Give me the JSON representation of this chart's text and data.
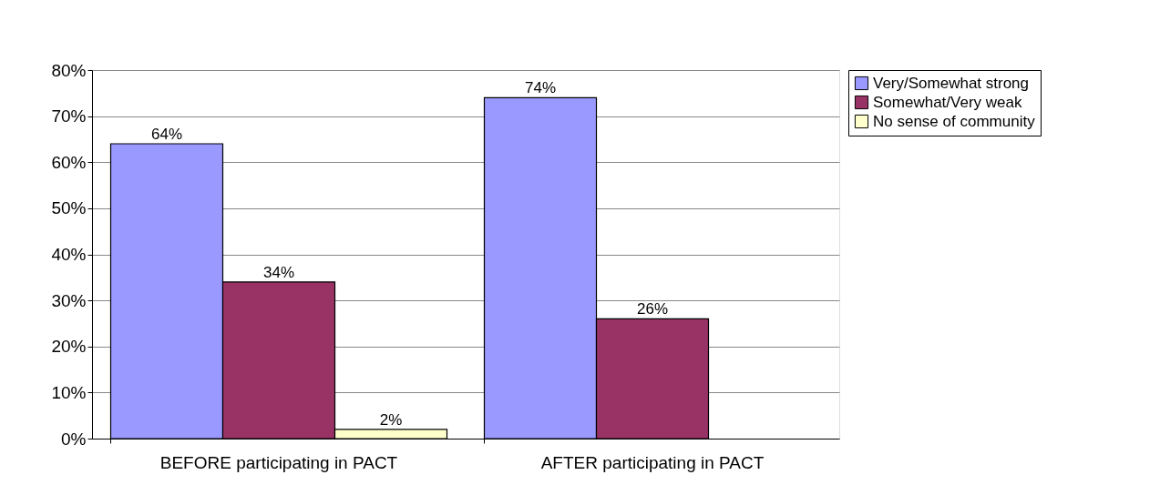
{
  "chart_data": {
    "type": "bar",
    "categories": [
      "BEFORE participating in PACT",
      "AFTER participating in PACT"
    ],
    "series": [
      {
        "name": "Very/Somewhat strong",
        "color": "#9999ff",
        "values": [
          64,
          74
        ],
        "value_labels": [
          "64%",
          "74%"
        ]
      },
      {
        "name": "Somewhat/Very weak",
        "color": "#993366",
        "values": [
          34,
          26
        ],
        "value_labels": [
          "34%",
          "26%"
        ]
      },
      {
        "name": "No sense of community",
        "color": "#ffffcc",
        "values": [
          2,
          null
        ],
        "value_labels": [
          "2%",
          null
        ]
      }
    ],
    "ylim": [
      0,
      80
    ],
    "yticks": [
      {
        "value": 0,
        "label": "0%"
      },
      {
        "value": 10,
        "label": "10%"
      },
      {
        "value": 20,
        "label": "20%"
      },
      {
        "value": 30,
        "label": "30%"
      },
      {
        "value": 40,
        "label": "40%"
      },
      {
        "value": 50,
        "label": "50%"
      },
      {
        "value": 60,
        "label": "60%"
      },
      {
        "value": 70,
        "label": "70%"
      },
      {
        "value": 80,
        "label": "80%"
      }
    ],
    "grid": "y",
    "legend": "right"
  }
}
